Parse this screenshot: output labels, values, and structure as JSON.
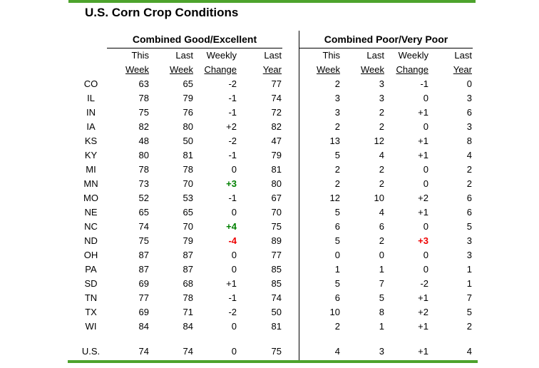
{
  "title": "U.S. Corn Crop Conditions",
  "colors": {
    "accent_green": "#4da32c",
    "positive_change_green": "#008000",
    "negative_change_red": "#ee0000",
    "text": "#000000",
    "background": "#ffffff"
  },
  "sections": [
    {
      "title": "Combined Good/Excellent"
    },
    {
      "title": "Combined Poor/Very Poor"
    }
  ],
  "columns": {
    "line1": [
      "This",
      "Last",
      "Weekly",
      "Last"
    ],
    "line2": [
      "Week",
      "Week",
      "Change",
      "Year"
    ]
  },
  "table": {
    "rows": [
      {
        "state": "CO",
        "good_excellent": {
          "this_week": "63",
          "last_week": "65",
          "weekly_change": "-2",
          "change_color": "default",
          "last_year": "77"
        },
        "poor_very_poor": {
          "this_week": "2",
          "last_week": "3",
          "weekly_change": "-1",
          "change_color": "default",
          "last_year": "0"
        }
      },
      {
        "state": "IL",
        "good_excellent": {
          "this_week": "78",
          "last_week": "79",
          "weekly_change": "-1",
          "change_color": "default",
          "last_year": "74"
        },
        "poor_very_poor": {
          "this_week": "3",
          "last_week": "3",
          "weekly_change": "0",
          "change_color": "default",
          "last_year": "3"
        }
      },
      {
        "state": "IN",
        "good_excellent": {
          "this_week": "75",
          "last_week": "76",
          "weekly_change": "-1",
          "change_color": "default",
          "last_year": "72"
        },
        "poor_very_poor": {
          "this_week": "3",
          "last_week": "2",
          "weekly_change": "+1",
          "change_color": "default",
          "last_year": "6"
        }
      },
      {
        "state": "IA",
        "good_excellent": {
          "this_week": "82",
          "last_week": "80",
          "weekly_change": "+2",
          "change_color": "default",
          "last_year": "82"
        },
        "poor_very_poor": {
          "this_week": "2",
          "last_week": "2",
          "weekly_change": "0",
          "change_color": "default",
          "last_year": "3"
        }
      },
      {
        "state": "KS",
        "good_excellent": {
          "this_week": "48",
          "last_week": "50",
          "weekly_change": "-2",
          "change_color": "default",
          "last_year": "47"
        },
        "poor_very_poor": {
          "this_week": "13",
          "last_week": "12",
          "weekly_change": "+1",
          "change_color": "default",
          "last_year": "8"
        }
      },
      {
        "state": "KY",
        "good_excellent": {
          "this_week": "80",
          "last_week": "81",
          "weekly_change": "-1",
          "change_color": "default",
          "last_year": "79"
        },
        "poor_very_poor": {
          "this_week": "5",
          "last_week": "4",
          "weekly_change": "+1",
          "change_color": "default",
          "last_year": "4"
        }
      },
      {
        "state": "MI",
        "good_excellent": {
          "this_week": "78",
          "last_week": "78",
          "weekly_change": "0",
          "change_color": "default",
          "last_year": "81"
        },
        "poor_very_poor": {
          "this_week": "2",
          "last_week": "2",
          "weekly_change": "0",
          "change_color": "default",
          "last_year": "2"
        }
      },
      {
        "state": "MN",
        "good_excellent": {
          "this_week": "73",
          "last_week": "70",
          "weekly_change": "+3",
          "change_color": "green",
          "last_year": "80"
        },
        "poor_very_poor": {
          "this_week": "2",
          "last_week": "2",
          "weekly_change": "0",
          "change_color": "default",
          "last_year": "2"
        }
      },
      {
        "state": "MO",
        "good_excellent": {
          "this_week": "52",
          "last_week": "53",
          "weekly_change": "-1",
          "change_color": "default",
          "last_year": "67"
        },
        "poor_very_poor": {
          "this_week": "12",
          "last_week": "10",
          "weekly_change": "+2",
          "change_color": "default",
          "last_year": "6"
        }
      },
      {
        "state": "NE",
        "good_excellent": {
          "this_week": "65",
          "last_week": "65",
          "weekly_change": "0",
          "change_color": "default",
          "last_year": "70"
        },
        "poor_very_poor": {
          "this_week": "5",
          "last_week": "4",
          "weekly_change": "+1",
          "change_color": "default",
          "last_year": "6"
        }
      },
      {
        "state": "NC",
        "good_excellent": {
          "this_week": "74",
          "last_week": "70",
          "weekly_change": "+4",
          "change_color": "green",
          "last_year": "75"
        },
        "poor_very_poor": {
          "this_week": "6",
          "last_week": "6",
          "weekly_change": "0",
          "change_color": "default",
          "last_year": "5"
        }
      },
      {
        "state": "ND",
        "good_excellent": {
          "this_week": "75",
          "last_week": "79",
          "weekly_change": "-4",
          "change_color": "red",
          "last_year": "89"
        },
        "poor_very_poor": {
          "this_week": "5",
          "last_week": "2",
          "weekly_change": "+3",
          "change_color": "red",
          "last_year": "3"
        }
      },
      {
        "state": "OH",
        "good_excellent": {
          "this_week": "87",
          "last_week": "87",
          "weekly_change": "0",
          "change_color": "default",
          "last_year": "77"
        },
        "poor_very_poor": {
          "this_week": "0",
          "last_week": "0",
          "weekly_change": "0",
          "change_color": "default",
          "last_year": "3"
        }
      },
      {
        "state": "PA",
        "good_excellent": {
          "this_week": "87",
          "last_week": "87",
          "weekly_change": "0",
          "change_color": "default",
          "last_year": "85"
        },
        "poor_very_poor": {
          "this_week": "1",
          "last_week": "1",
          "weekly_change": "0",
          "change_color": "default",
          "last_year": "1"
        }
      },
      {
        "state": "SD",
        "good_excellent": {
          "this_week": "69",
          "last_week": "68",
          "weekly_change": "+1",
          "change_color": "default",
          "last_year": "85"
        },
        "poor_very_poor": {
          "this_week": "5",
          "last_week": "7",
          "weekly_change": "-2",
          "change_color": "default",
          "last_year": "1"
        }
      },
      {
        "state": "TN",
        "good_excellent": {
          "this_week": "77",
          "last_week": "78",
          "weekly_change": "-1",
          "change_color": "default",
          "last_year": "74"
        },
        "poor_very_poor": {
          "this_week": "6",
          "last_week": "5",
          "weekly_change": "+1",
          "change_color": "default",
          "last_year": "7"
        }
      },
      {
        "state": "TX",
        "good_excellent": {
          "this_week": "69",
          "last_week": "71",
          "weekly_change": "-2",
          "change_color": "default",
          "last_year": "50"
        },
        "poor_very_poor": {
          "this_week": "10",
          "last_week": "8",
          "weekly_change": "+2",
          "change_color": "default",
          "last_year": "5"
        }
      },
      {
        "state": "WI",
        "good_excellent": {
          "this_week": "84",
          "last_week": "84",
          "weekly_change": "0",
          "change_color": "default",
          "last_year": "81"
        },
        "poor_very_poor": {
          "this_week": "2",
          "last_week": "1",
          "weekly_change": "+1",
          "change_color": "default",
          "last_year": "2"
        }
      },
      {
        "state": "U.S.",
        "spacer_before": true,
        "good_excellent": {
          "this_week": "74",
          "last_week": "74",
          "weekly_change": "0",
          "change_color": "default",
          "last_year": "75"
        },
        "poor_very_poor": {
          "this_week": "4",
          "last_week": "3",
          "weekly_change": "+1",
          "change_color": "default",
          "last_year": "4"
        }
      }
    ]
  },
  "chart_data": {
    "type": "table",
    "title": "U.S. Corn Crop Conditions",
    "section_headers": [
      "Combined Good/Excellent",
      "Combined Poor/Very Poor"
    ],
    "column_headers": [
      "This Week",
      "Last Week",
      "Weekly Change",
      "Last Year"
    ],
    "row_labels": [
      "CO",
      "IL",
      "IN",
      "IA",
      "KS",
      "KY",
      "MI",
      "MN",
      "MO",
      "NE",
      "NC",
      "ND",
      "OH",
      "PA",
      "SD",
      "TN",
      "TX",
      "WI",
      "U.S."
    ],
    "good_excellent": {
      "this_week": [
        63,
        78,
        75,
        82,
        48,
        80,
        78,
        73,
        52,
        65,
        74,
        75,
        87,
        87,
        69,
        77,
        69,
        84,
        74
      ],
      "last_week": [
        65,
        79,
        76,
        80,
        50,
        81,
        78,
        70,
        53,
        65,
        70,
        79,
        87,
        87,
        68,
        78,
        71,
        84,
        74
      ],
      "weekly_change": [
        -2,
        -1,
        -1,
        2,
        -2,
        -1,
        0,
        3,
        -1,
        0,
        4,
        -4,
        0,
        0,
        1,
        -1,
        -2,
        0,
        0
      ],
      "last_year": [
        77,
        74,
        72,
        82,
        47,
        79,
        81,
        80,
        67,
        70,
        75,
        89,
        77,
        85,
        85,
        74,
        50,
        81,
        75
      ]
    },
    "poor_very_poor": {
      "this_week": [
        2,
        3,
        3,
        2,
        13,
        5,
        2,
        2,
        12,
        5,
        6,
        5,
        0,
        1,
        5,
        6,
        10,
        2,
        4
      ],
      "last_week": [
        3,
        3,
        2,
        2,
        12,
        4,
        2,
        2,
        10,
        4,
        6,
        2,
        0,
        1,
        7,
        5,
        8,
        1,
        3
      ],
      "weekly_change": [
        -1,
        0,
        1,
        0,
        1,
        1,
        0,
        0,
        2,
        1,
        0,
        3,
        0,
        0,
        -2,
        1,
        2,
        1,
        1
      ],
      "last_year": [
        0,
        3,
        6,
        3,
        8,
        4,
        2,
        2,
        6,
        6,
        5,
        3,
        3,
        1,
        1,
        7,
        5,
        2,
        4
      ]
    },
    "highlighted_changes": [
      {
        "row": "MN",
        "section": "good_excellent",
        "value": 3,
        "color": "green"
      },
      {
        "row": "NC",
        "section": "good_excellent",
        "value": 4,
        "color": "green"
      },
      {
        "row": "ND",
        "section": "good_excellent",
        "value": -4,
        "color": "red"
      },
      {
        "row": "ND",
        "section": "poor_very_poor",
        "value": 3,
        "color": "red"
      }
    ]
  }
}
